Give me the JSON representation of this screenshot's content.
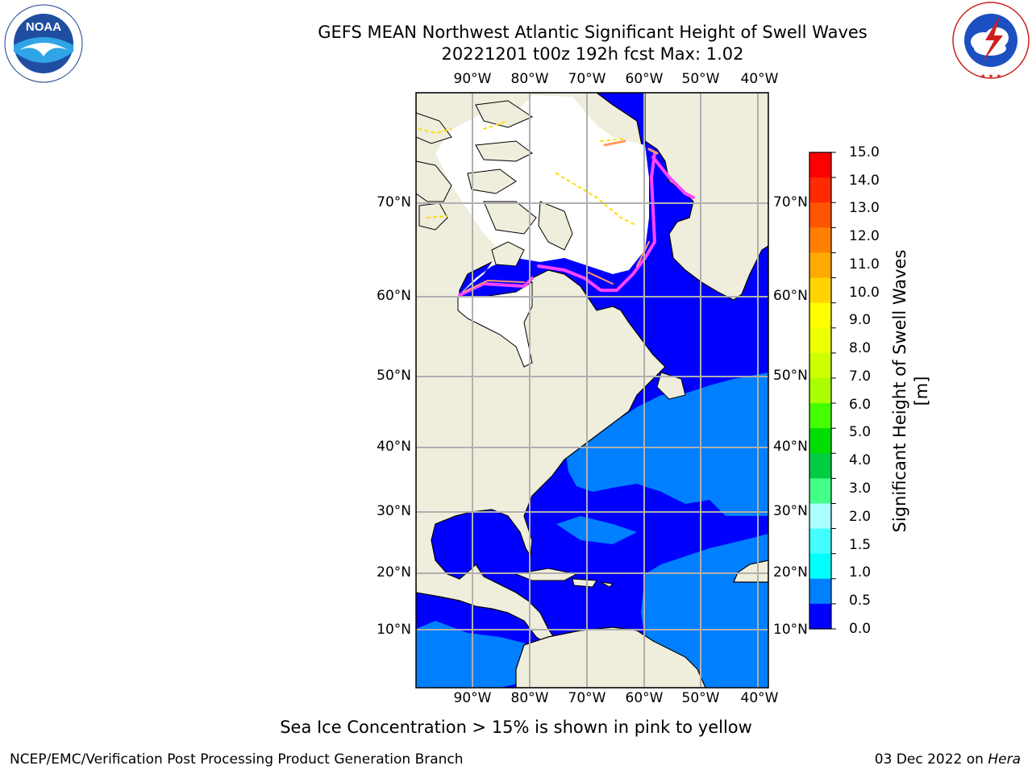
{
  "title": {
    "line1": "GEFS MEAN Northwest Atlantic Significant Height of Swell Waves",
    "line2": "20221201 t00z 192h fcst   Max: 1.02"
  },
  "map": {
    "lon_labels": [
      "90°W",
      "80°W",
      "70°W",
      "60°W",
      "50°W",
      "40°W"
    ],
    "lat_labels": [
      "70°N",
      "60°N",
      "50°N",
      "40°N",
      "30°N",
      "20°N",
      "10°N"
    ],
    "colors": {
      "land": "#efeddc",
      "ice_area": "#ffffff",
      "swell_0_0p5": "#0000ff",
      "swell_0p5_1": "#0080ff",
      "ice_edge": [
        "#ff44ff",
        "#ff9966",
        "#ffdd00"
      ],
      "grid": "#b0b0b0"
    }
  },
  "colorbar": {
    "label": "Significant Height of Swell Waves [m]",
    "ticks": [
      "15.0",
      "14.0",
      "13.0",
      "12.0",
      "11.0",
      "10.0",
      "9.0",
      "8.0",
      "7.0",
      "6.0",
      "5.0",
      "4.0",
      "3.0",
      "2.0",
      "1.5",
      "1.0",
      "0.5",
      "0.0"
    ],
    "colors_top_to_bottom": [
      "#ff0000",
      "#ff2a00",
      "#ff5500",
      "#ff8000",
      "#ffaa00",
      "#ffd400",
      "#ffff00",
      "#eeff00",
      "#ccff00",
      "#aaff00",
      "#44ff00",
      "#00dd00",
      "#00cc44",
      "#44ff88",
      "#aaffff",
      "#44ffff",
      "#00ffff",
      "#0080ff",
      "#0000ff"
    ]
  },
  "caption": "Sea Ice Concentration > 15% is shown in pink to yellow",
  "footer": {
    "left": "NCEP/EMC/Verification Post Processing Product Generation Branch",
    "right_prefix": "03 Dec 2022 on ",
    "right_host": "Hera"
  },
  "logos": {
    "noaa_text": "NOAA",
    "nws_ring_text": "NATIONAL WEATHER SERVICE"
  }
}
